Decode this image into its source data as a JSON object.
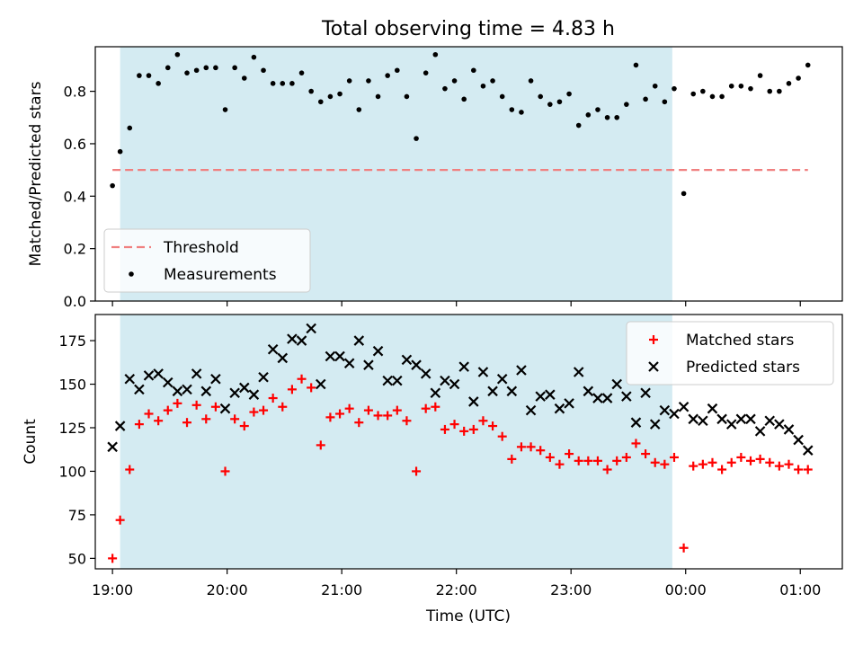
{
  "chart_data": {
    "title": "Total observing time = 4.83 h",
    "xlabel": "Time (UTC)",
    "x_tick_labels": [
      "19:00",
      "20:00",
      "21:00",
      "22:00",
      "23:00",
      "00:00",
      "01:00"
    ],
    "x_range": [
      "18:51",
      "01:22"
    ],
    "observing_window": {
      "start": "19:04",
      "end": "23:53",
      "color": "#d4ebf2"
    },
    "times": [
      "19:00",
      "19:04",
      "19:09",
      "19:14",
      "19:19",
      "19:24",
      "19:29",
      "19:34",
      "19:39",
      "19:44",
      "19:49",
      "19:54",
      "19:59",
      "20:04",
      "20:09",
      "20:14",
      "20:19",
      "20:24",
      "20:29",
      "20:34",
      "20:39",
      "20:44",
      "20:49",
      "20:54",
      "20:59",
      "21:04",
      "21:09",
      "21:14",
      "21:19",
      "21:24",
      "21:29",
      "21:34",
      "21:39",
      "21:44",
      "21:49",
      "21:54",
      "21:59",
      "22:04",
      "22:09",
      "22:14",
      "22:19",
      "22:24",
      "22:29",
      "22:34",
      "22:39",
      "22:44",
      "22:49",
      "22:54",
      "22:59",
      "23:04",
      "23:09",
      "23:14",
      "23:19",
      "23:24",
      "23:29",
      "23:34",
      "23:39",
      "23:44",
      "23:49",
      "23:54",
      "23:59",
      "00:04",
      "00:09",
      "00:14",
      "00:19",
      "00:24",
      "00:29",
      "00:34",
      "00:39",
      "00:44",
      "00:49",
      "00:54",
      "00:59",
      "01:04"
    ],
    "panels": [
      {
        "type": "scatter",
        "ylabel": "Matched/Predicted stars",
        "ylim": [
          0,
          0.97
        ],
        "y_ticks": [
          0.0,
          0.2,
          0.4,
          0.6,
          0.8
        ],
        "y_tick_labels": [
          "0.0",
          "0.2",
          "0.4",
          "0.6",
          "0.8"
        ],
        "legend_position": "lower-left",
        "threshold": {
          "name": "Threshold",
          "value": 0.5,
          "from": "19:00",
          "to": "01:04",
          "color": "#f08080"
        },
        "series": [
          {
            "name": "Measurements",
            "marker": "dot",
            "color": "#000000",
            "values": [
              0.44,
              0.57,
              0.66,
              0.86,
              0.86,
              0.83,
              0.89,
              0.94,
              0.87,
              0.88,
              0.89,
              0.89,
              0.73,
              0.89,
              0.85,
              0.93,
              0.88,
              0.83,
              0.83,
              0.83,
              0.87,
              0.8,
              0.76,
              0.78,
              0.79,
              0.84,
              0.73,
              0.84,
              0.78,
              0.86,
              0.88,
              0.78,
              0.62,
              0.87,
              0.94,
              0.81,
              0.84,
              0.77,
              0.88,
              0.82,
              0.84,
              0.78,
              0.73,
              0.72,
              0.84,
              0.78,
              0.75,
              0.76,
              0.79,
              0.67,
              0.71,
              0.73,
              0.7,
              0.7,
              0.75,
              0.9,
              0.77,
              0.82,
              0.76,
              0.81,
              0.41,
              0.79,
              0.8,
              0.78,
              0.78,
              0.82,
              0.82,
              0.81,
              0.86,
              0.8,
              0.8,
              0.83,
              0.85,
              0.9
            ]
          }
        ]
      },
      {
        "type": "scatter",
        "ylabel": "Count",
        "ylim": [
          44,
          190
        ],
        "y_ticks": [
          50,
          75,
          100,
          125,
          150,
          175
        ],
        "y_tick_labels": [
          "50",
          "75",
          "100",
          "125",
          "150",
          "175"
        ],
        "legend_position": "upper-right",
        "series": [
          {
            "name": "Matched stars",
            "marker": "plus",
            "color": "#ff0000",
            "values": [
              50,
              72,
              101,
              127,
              133,
              129,
              135,
              139,
              128,
              138,
              130,
              137,
              100,
              130,
              126,
              134,
              135,
              142,
              137,
              147,
              153,
              148,
              115,
              131,
              133,
              136,
              128,
              135,
              132,
              132,
              135,
              129,
              100,
              136,
              137,
              124,
              127,
              123,
              124,
              129,
              126,
              120,
              107,
              114,
              114,
              112,
              108,
              104,
              110,
              106,
              106,
              106,
              101,
              106,
              108,
              116,
              110,
              105,
              104,
              108,
              56,
              103,
              104,
              105,
              101,
              105,
              108,
              106,
              107,
              105,
              103,
              104,
              101,
              101
            ]
          },
          {
            "name": "Predicted stars",
            "marker": "x",
            "color": "#000000",
            "values": [
              114,
              126,
              153,
              147,
              155,
              156,
              151,
              146,
              147,
              156,
              146,
              153,
              136,
              145,
              148,
              144,
              154,
              170,
              165,
              176,
              175,
              182,
              150,
              166,
              166,
              162,
              175,
              161,
              169,
              152,
              152,
              164,
              161,
              156,
              145,
              152,
              150,
              160,
              140,
              157,
              146,
              153,
              146,
              158,
              135,
              143,
              144,
              136,
              139,
              157,
              146,
              142,
              142,
              150,
              143,
              128,
              145,
              127,
              135,
              133,
              137,
              130,
              129,
              136,
              130,
              127,
              130,
              130,
              123,
              129,
              127,
              124,
              118,
              112
            ]
          }
        ]
      }
    ]
  }
}
